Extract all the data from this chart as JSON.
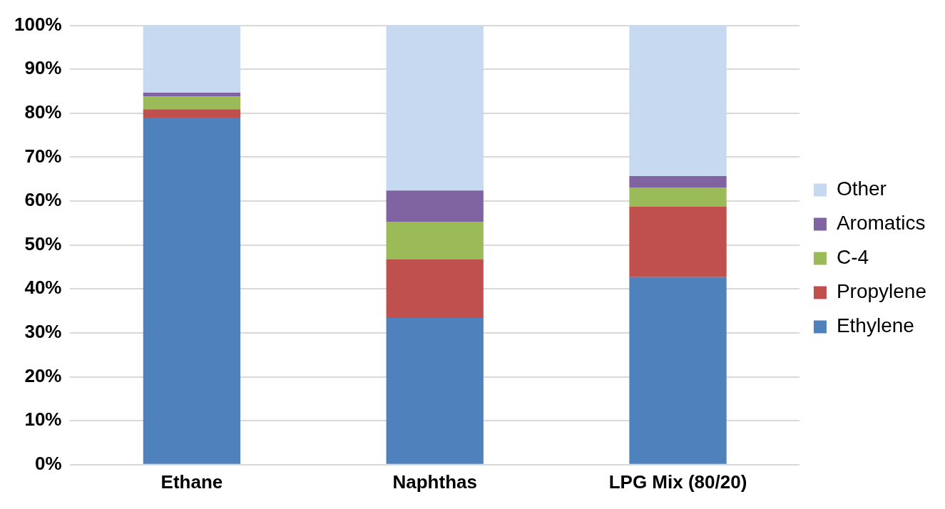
{
  "chart_data": {
    "type": "bar",
    "stacked": true,
    "categories": [
      "Ethane",
      "Naphthas",
      "LPG Mix (80/20)"
    ],
    "series": [
      {
        "name": "Ethylene",
        "color": "#4f81bd",
        "values": [
          79.0,
          33.4,
          42.7
        ]
      },
      {
        "name": "Propylene",
        "color": "#c0504d",
        "values": [
          1.9,
          13.4,
          16.0
        ]
      },
      {
        "name": "C-4",
        "color": "#9bbb59",
        "values": [
          2.9,
          8.5,
          4.4
        ]
      },
      {
        "name": "Aromatics",
        "color": "#8064a2",
        "values": [
          0.9,
          7.1,
          2.6
        ]
      },
      {
        "name": "Other",
        "color": "#c6d9f1",
        "values": [
          15.3,
          37.6,
          34.3
        ]
      }
    ],
    "ylim": [
      0,
      100
    ],
    "yticks": [
      {
        "value": 0,
        "label": "0%"
      },
      {
        "value": 10,
        "label": "10%"
      },
      {
        "value": 20,
        "label": "20%"
      },
      {
        "value": 30,
        "label": "30%"
      },
      {
        "value": 40,
        "label": "40%"
      },
      {
        "value": 50,
        "label": "50%"
      },
      {
        "value": 60,
        "label": "60%"
      },
      {
        "value": 70,
        "label": "70%"
      },
      {
        "value": 80,
        "label": "80%"
      },
      {
        "value": 90,
        "label": "90%"
      },
      {
        "value": 100,
        "label": "100%"
      }
    ],
    "grid": "y",
    "legend": "right"
  }
}
